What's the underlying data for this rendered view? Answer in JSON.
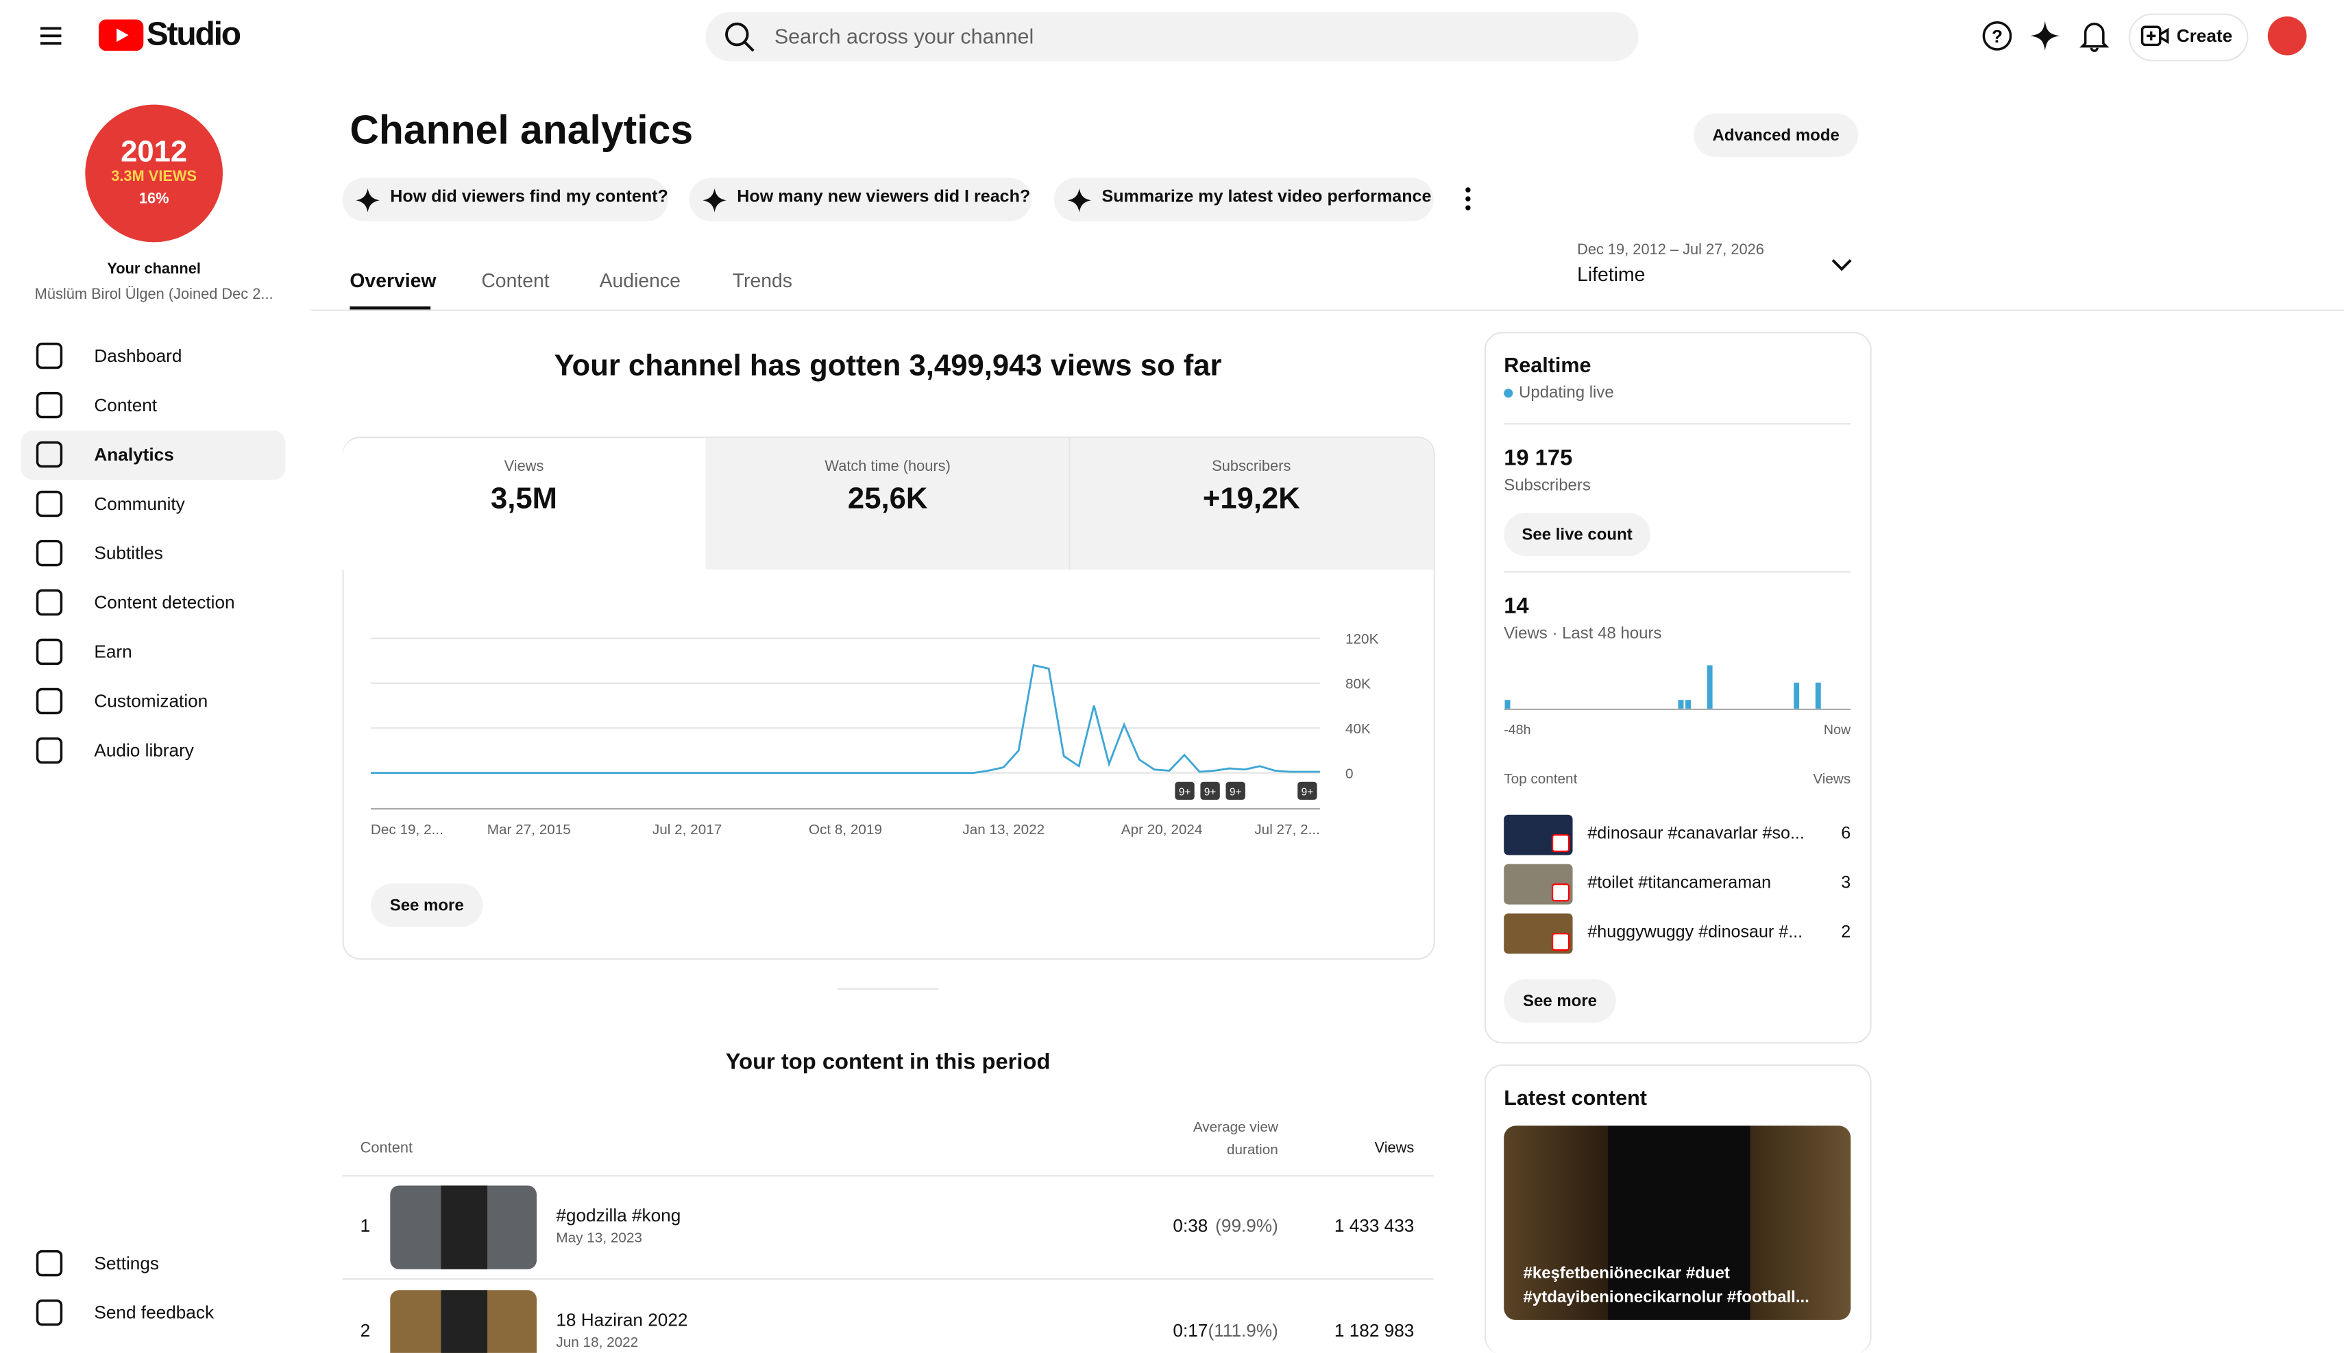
{
  "header": {
    "logo": "Studio",
    "search_placeholder": "Search across your channel",
    "create": "Create"
  },
  "sidebar": {
    "avatar_year": "2012",
    "avatar_views": "3.3M VIEWS",
    "avatar_percent": "16%",
    "channel_label": "Your channel",
    "channel_name": "Müslüm Birol Ülgen (Joined Dec 2...",
    "nav": [
      "Dashboard",
      "Content",
      "Analytics",
      "Community",
      "Subtitles",
      "Content detection",
      "Earn",
      "Customization",
      "Audio library"
    ],
    "bottom": [
      "Settings",
      "Send feedback"
    ]
  },
  "page": {
    "title": "Channel analytics",
    "advanced": "Advanced mode",
    "suggestions": [
      "How did viewers find my content?",
      "How many new viewers did I reach?",
      "Summarize my latest video performance"
    ],
    "tabs": [
      "Overview",
      "Content",
      "Audience",
      "Trends"
    ],
    "date_range": "Dec 19, 2012 – Jul 27, 2026",
    "period": "Lifetime"
  },
  "summary": "Your channel has gotten 3,499,943 views so far",
  "metrics": [
    {
      "label": "Views",
      "value": "3,5M"
    },
    {
      "label": "Watch time (hours)",
      "value": "25,6K"
    },
    {
      "label": "Subscribers",
      "value": "+19,2K"
    }
  ],
  "chart_data": {
    "type": "line",
    "color": "#3ea6d5",
    "x_labels": [
      "Dec 19, 2...",
      "Mar 27, 2015",
      "Jul 2, 2017",
      "Oct 8, 2019",
      "Jan 13, 2022",
      "Apr 20, 2024",
      "Jul 27, 2..."
    ],
    "ylim": [
      0,
      120000
    ],
    "yticks": [
      {
        "value": 0,
        "label": "0"
      },
      {
        "value": 40000,
        "label": "40K"
      },
      {
        "value": 80000,
        "label": "80K"
      },
      {
        "value": 120000,
        "label": "120K"
      }
    ],
    "grid": true,
    "values": [
      0,
      0,
      0,
      0,
      0,
      0,
      0,
      0,
      0,
      0,
      0,
      0,
      0,
      0,
      0,
      0,
      0,
      0,
      0,
      0,
      0,
      0,
      0,
      0,
      0,
      0,
      0,
      0,
      0,
      0,
      0,
      0,
      0,
      0,
      0,
      0,
      0,
      0,
      0,
      0,
      0,
      2000,
      5000,
      20000,
      96000,
      93000,
      15000,
      6000,
      60000,
      8000,
      43000,
      12000,
      3000,
      2000,
      16000,
      1000,
      2000,
      4000,
      3000,
      6000,
      2000,
      1000,
      1000,
      1000
    ],
    "badges": [
      "9+",
      "9+",
      "9+",
      "9+"
    ]
  },
  "see_more": "See more",
  "top_content": {
    "title": "Your top content in this period",
    "headers": [
      "Content",
      "Average view duration",
      "Views"
    ],
    "rows": [
      {
        "rank": "1",
        "title": "#godzilla #kong",
        "date": "May 13, 2023",
        "duration": "0:38",
        "percent": "(99.9%)",
        "views": "1 433 433"
      },
      {
        "rank": "2",
        "title": "18 Haziran 2022",
        "date": "Jun 18, 2022",
        "duration": "0:17",
        "percent": "(111.9%)",
        "views": "1 182 983"
      }
    ]
  },
  "realtime": {
    "title": "Realtime",
    "status": "Updating live",
    "subscribers": "19 175",
    "subscribers_label": "Subscribers",
    "live_count": "See live count",
    "views": "14",
    "views_label": "Views · Last 48 hours",
    "hourly_views": [
      1,
      0,
      0,
      0,
      0,
      0,
      0,
      0,
      0,
      0,
      0,
      0,
      0,
      0,
      0,
      0,
      0,
      0,
      0,
      0,
      0,
      0,
      0,
      0,
      1,
      1,
      0,
      0,
      5,
      0,
      0,
      0,
      0,
      0,
      0,
      0,
      0,
      0,
      0,
      0,
      3,
      0,
      0,
      3,
      0,
      0,
      0,
      0
    ],
    "start_label": "-48h",
    "end_label": "Now",
    "top_label": "Top content",
    "views_header": "Views",
    "items": [
      {
        "title": "#dinosaur #canavarlar #so...",
        "views": "6"
      },
      {
        "title": "#toilet #titancameraman",
        "views": "3"
      },
      {
        "title": "#huggywuggy #dinosaur #...",
        "views": "2"
      }
    ],
    "see_more": "See more"
  },
  "latest": {
    "title": "Latest content",
    "caption": "#keşfetbeniönecıkar #duet #ytdayibenionecikarnolur #football..."
  }
}
